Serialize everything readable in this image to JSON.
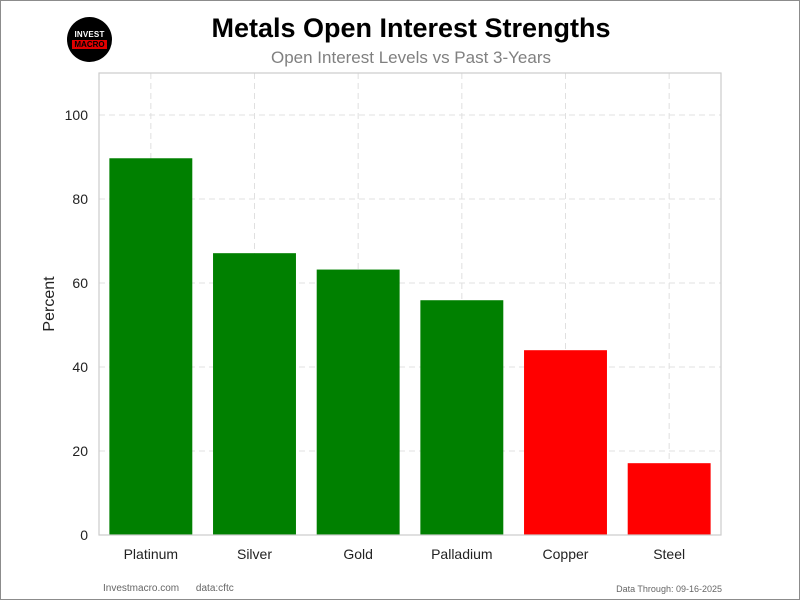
{
  "header": {
    "logo_top": "INVEST",
    "logo_bottom": "MACRO",
    "title": "Metals Open Interest Strengths",
    "subtitle": "Open Interest Levels vs Past 3-Years"
  },
  "footer": {
    "site": "Investmacro.com",
    "source": "data:cftc",
    "data_through": "Data Through: 09-16-2025"
  },
  "colors": {
    "positive": "#008000",
    "negative": "#ff0000",
    "grid": "#e0e0e0",
    "axis": "#cccccc"
  },
  "chart_data": {
    "type": "bar",
    "title": "Metals Open Interest Strengths",
    "subtitle": "Open Interest Levels vs Past 3-Years",
    "xlabel": "",
    "ylabel": "Percent",
    "ylim": [
      0,
      110
    ],
    "yticks": [
      0,
      20,
      40,
      60,
      80,
      100
    ],
    "grid": true,
    "categories": [
      "Platinum",
      "Silver",
      "Gold",
      "Palladium",
      "Copper",
      "Steel"
    ],
    "values": [
      89.7,
      67.1,
      63.2,
      55.9,
      44.0,
      17.1
    ],
    "bar_colors": [
      "#008000",
      "#008000",
      "#008000",
      "#008000",
      "#ff0000",
      "#ff0000"
    ]
  }
}
